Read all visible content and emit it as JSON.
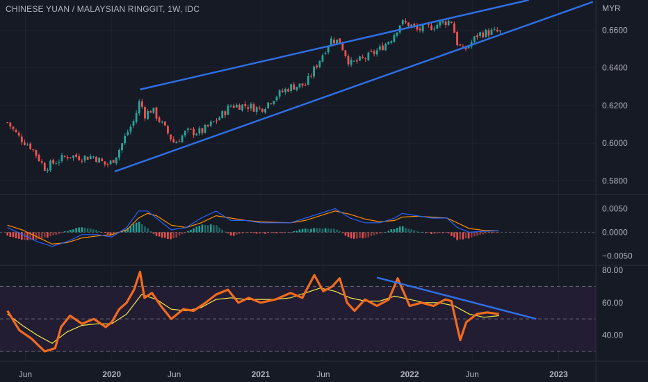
{
  "chart_data": [
    {
      "type": "candlestick",
      "title": "CHINESE YUAN / MALAYSIAN RINGGIT, 1W, IDC",
      "currency_label": "MYR",
      "y_ticks": [
        "0.6600",
        "0.6400",
        "0.6200",
        "0.6000",
        "0.5800"
      ],
      "y_tick_values": [
        0.66,
        0.64,
        0.62,
        0.6,
        0.58
      ],
      "ylim": [
        0.5728,
        0.676
      ],
      "colors": {
        "up": "#26a69a",
        "down": "#ef5350",
        "trendline": "#2f6fe4"
      },
      "close_path": [
        [
          2019.3,
          0.611
        ],
        [
          2019.38,
          0.603
        ],
        [
          2019.46,
          0.598
        ],
        [
          2019.55,
          0.587
        ],
        [
          2019.63,
          0.5905
        ],
        [
          2019.71,
          0.5935
        ],
        [
          2019.8,
          0.5925
        ],
        [
          2019.88,
          0.593
        ],
        [
          2019.96,
          0.5885
        ],
        [
          2020.0,
          0.59
        ],
        [
          2020.04,
          0.595
        ],
        [
          2020.1,
          0.605
        ],
        [
          2020.15,
          0.612
        ],
        [
          2020.19,
          0.623
        ],
        [
          2020.22,
          0.615
        ],
        [
          2020.27,
          0.618
        ],
        [
          2020.33,
          0.611
        ],
        [
          2020.42,
          0.6
        ],
        [
          2020.5,
          0.606
        ],
        [
          2020.6,
          0.606
        ],
        [
          2020.7,
          0.612
        ],
        [
          2020.8,
          0.62
        ],
        [
          2020.9,
          0.62
        ],
        [
          2021.0,
          0.618
        ],
        [
          2021.1,
          0.625
        ],
        [
          2021.2,
          0.63
        ],
        [
          2021.3,
          0.631
        ],
        [
          2021.4,
          0.645
        ],
        [
          2021.47,
          0.655
        ],
        [
          2021.53,
          0.654
        ],
        [
          2021.6,
          0.642
        ],
        [
          2021.7,
          0.645
        ],
        [
          2021.8,
          0.65
        ],
        [
          2021.88,
          0.656
        ],
        [
          2021.94,
          0.664
        ],
        [
          2022.0,
          0.663
        ],
        [
          2022.05,
          0.66
        ],
        [
          2022.15,
          0.662
        ],
        [
          2022.22,
          0.664
        ],
        [
          2022.28,
          0.665
        ],
        [
          2022.32,
          0.653
        ],
        [
          2022.36,
          0.649
        ],
        [
          2022.4,
          0.652
        ],
        [
          2022.46,
          0.658
        ],
        [
          2022.55,
          0.659
        ],
        [
          2022.62,
          0.659
        ]
      ],
      "trendlines": [
        {
          "label": "channel-upper",
          "x": [
            2020.19,
            2022.8
          ],
          "y": [
            0.6285,
            0.676
          ]
        },
        {
          "label": "channel-lower",
          "x": [
            2020.02,
            2023.23
          ],
          "y": [
            0.585,
            0.675
          ]
        }
      ]
    },
    {
      "type": "macd",
      "y_ticks": [
        "0.0050",
        "0.0000",
        "−0.0050"
      ],
      "y_tick_values": [
        0.005,
        0.0,
        -0.005
      ],
      "ylim": [
        -0.007,
        0.008
      ],
      "colors": {
        "macd": "#2962ff",
        "signal": "#ff8f00",
        "hist_up": "#26a69a",
        "hist_down": "#ef5350"
      },
      "macd_line": [
        [
          2019.3,
          0.001
        ],
        [
          2019.4,
          -0.0005
        ],
        [
          2019.5,
          -0.002
        ],
        [
          2019.6,
          -0.003
        ],
        [
          2019.7,
          -0.002
        ],
        [
          2019.8,
          -0.0005
        ],
        [
          2019.9,
          -0.0005
        ],
        [
          2020.0,
          -0.001
        ],
        [
          2020.1,
          0.001
        ],
        [
          2020.18,
          0.0045
        ],
        [
          2020.24,
          0.0045
        ],
        [
          2020.3,
          0.003
        ],
        [
          2020.4,
          0.0005
        ],
        [
          2020.5,
          0.001
        ],
        [
          2020.6,
          0.003
        ],
        [
          2020.7,
          0.0045
        ],
        [
          2020.8,
          0.0025
        ],
        [
          2020.9,
          0.0025
        ],
        [
          2021.0,
          0.002
        ],
        [
          2021.1,
          0.002
        ],
        [
          2021.2,
          0.002
        ],
        [
          2021.3,
          0.003
        ],
        [
          2021.4,
          0.004
        ],
        [
          2021.5,
          0.005
        ],
        [
          2021.6,
          0.003
        ],
        [
          2021.7,
          0.002
        ],
        [
          2021.8,
          0.002
        ],
        [
          2021.9,
          0.003
        ],
        [
          2021.95,
          0.004
        ],
        [
          2022.05,
          0.0035
        ],
        [
          2022.15,
          0.003
        ],
        [
          2022.25,
          0.003
        ],
        [
          2022.32,
          0.001
        ],
        [
          2022.4,
          0.0
        ],
        [
          2022.5,
          0.0002
        ],
        [
          2022.6,
          0.0003
        ]
      ],
      "signal_line": [
        [
          2019.3,
          0.0015
        ],
        [
          2019.4,
          0.0005
        ],
        [
          2019.5,
          -0.001
        ],
        [
          2019.6,
          -0.0025
        ],
        [
          2019.7,
          -0.0022
        ],
        [
          2019.8,
          -0.0012
        ],
        [
          2019.9,
          -0.0008
        ],
        [
          2020.0,
          -0.0005
        ],
        [
          2020.1,
          0.0005
        ],
        [
          2020.18,
          0.003
        ],
        [
          2020.24,
          0.004
        ],
        [
          2020.3,
          0.0035
        ],
        [
          2020.4,
          0.0015
        ],
        [
          2020.5,
          0.001
        ],
        [
          2020.6,
          0.002
        ],
        [
          2020.7,
          0.0035
        ],
        [
          2020.8,
          0.003
        ],
        [
          2020.9,
          0.0025
        ],
        [
          2021.0,
          0.0022
        ],
        [
          2021.1,
          0.0021
        ],
        [
          2021.2,
          0.002
        ],
        [
          2021.3,
          0.0025
        ],
        [
          2021.4,
          0.0035
        ],
        [
          2021.5,
          0.0045
        ],
        [
          2021.6,
          0.0038
        ],
        [
          2021.7,
          0.0028
        ],
        [
          2021.8,
          0.0022
        ],
        [
          2021.9,
          0.0025
        ],
        [
          2021.95,
          0.0032
        ],
        [
          2022.05,
          0.0034
        ],
        [
          2022.15,
          0.0032
        ],
        [
          2022.25,
          0.003
        ],
        [
          2022.32,
          0.002
        ],
        [
          2022.4,
          0.0008
        ],
        [
          2022.5,
          0.0004
        ],
        [
          2022.6,
          0.0003
        ]
      ]
    },
    {
      "type": "rsi",
      "y_ticks": [
        "80.00",
        "60.00",
        "40.00"
      ],
      "y_tick_values": [
        80,
        60,
        40
      ],
      "ylim": [
        24,
        83
      ],
      "band": [
        30,
        70
      ],
      "mid": 50,
      "colors": {
        "rsi": "#f26b1d",
        "ma": "#f5e94a",
        "band_fill": "#231d33",
        "trendline": "#2f6fe4"
      },
      "rsi_line": [
        [
          2019.3,
          55
        ],
        [
          2019.38,
          43
        ],
        [
          2019.46,
          38
        ],
        [
          2019.55,
          30
        ],
        [
          2019.62,
          32
        ],
        [
          2019.66,
          45
        ],
        [
          2019.72,
          52
        ],
        [
          2019.8,
          47
        ],
        [
          2019.88,
          50
        ],
        [
          2019.96,
          45
        ],
        [
          2020.0,
          48
        ],
        [
          2020.05,
          56
        ],
        [
          2020.1,
          60
        ],
        [
          2020.15,
          68
        ],
        [
          2020.19,
          79
        ],
        [
          2020.22,
          63
        ],
        [
          2020.27,
          66
        ],
        [
          2020.33,
          58
        ],
        [
          2020.4,
          50
        ],
        [
          2020.48,
          56
        ],
        [
          2020.55,
          55
        ],
        [
          2020.63,
          60
        ],
        [
          2020.7,
          65
        ],
        [
          2020.78,
          68
        ],
        [
          2020.85,
          60
        ],
        [
          2020.92,
          63
        ],
        [
          2021.0,
          60
        ],
        [
          2021.1,
          62
        ],
        [
          2021.2,
          66
        ],
        [
          2021.28,
          63
        ],
        [
          2021.36,
          77
        ],
        [
          2021.42,
          67
        ],
        [
          2021.48,
          70
        ],
        [
          2021.53,
          75
        ],
        [
          2021.58,
          60
        ],
        [
          2021.63,
          55
        ],
        [
          2021.7,
          62
        ],
        [
          2021.78,
          58
        ],
        [
          2021.86,
          62
        ],
        [
          2021.92,
          75
        ],
        [
          2022.0,
          58
        ],
        [
          2022.08,
          60
        ],
        [
          2022.16,
          58
        ],
        [
          2022.24,
          62
        ],
        [
          2022.28,
          61
        ],
        [
          2022.31,
          49
        ],
        [
          2022.34,
          37
        ],
        [
          2022.38,
          48
        ],
        [
          2022.45,
          53
        ],
        [
          2022.52,
          54
        ],
        [
          2022.6,
          53
        ]
      ],
      "ma_line": [
        [
          2019.3,
          53
        ],
        [
          2019.4,
          46
        ],
        [
          2019.5,
          40
        ],
        [
          2019.6,
          35
        ],
        [
          2019.7,
          42
        ],
        [
          2019.8,
          46
        ],
        [
          2019.9,
          47
        ],
        [
          2020.0,
          47
        ],
        [
          2020.1,
          53
        ],
        [
          2020.2,
          65
        ],
        [
          2020.3,
          62
        ],
        [
          2020.4,
          56
        ],
        [
          2020.5,
          55
        ],
        [
          2020.6,
          57
        ],
        [
          2020.7,
          62
        ],
        [
          2020.8,
          63
        ],
        [
          2020.9,
          62
        ],
        [
          2021.0,
          62
        ],
        [
          2021.1,
          62
        ],
        [
          2021.2,
          63
        ],
        [
          2021.3,
          66
        ],
        [
          2021.4,
          69
        ],
        [
          2021.5,
          67
        ],
        [
          2021.6,
          63
        ],
        [
          2021.7,
          61
        ],
        [
          2021.8,
          61
        ],
        [
          2021.9,
          64
        ],
        [
          2022.0,
          62
        ],
        [
          2022.1,
          60
        ],
        [
          2022.2,
          60
        ],
        [
          2022.3,
          58
        ],
        [
          2022.4,
          53
        ],
        [
          2022.5,
          51
        ],
        [
          2022.6,
          52
        ]
      ],
      "trendline": {
        "x": [
          2021.78,
          2022.85
        ],
        "y": [
          75.5,
          50
        ]
      }
    }
  ],
  "x_axis": {
    "xlim": [
      2019.25,
      2023.25
    ],
    "ticks": [
      {
        "label": "Jun",
        "value": 2019.42,
        "bold": false
      },
      {
        "label": "2020",
        "value": 2020.0,
        "bold": true
      },
      {
        "label": "Jun",
        "value": 2020.42,
        "bold": false
      },
      {
        "label": "2021",
        "value": 2021.0,
        "bold": true
      },
      {
        "label": "Jun",
        "value": 2021.42,
        "bold": false
      },
      {
        "label": "2022",
        "value": 2022.0,
        "bold": true
      },
      {
        "label": "Jun",
        "value": 2022.42,
        "bold": false
      },
      {
        "label": "2023",
        "value": 2023.0,
        "bold": true
      }
    ]
  }
}
